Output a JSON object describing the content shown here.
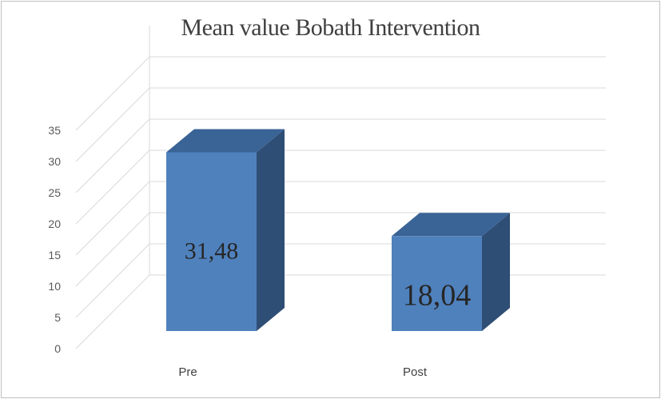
{
  "chart_data": {
    "type": "bar",
    "title": "Mean value Bobath Intervention",
    "categories": [
      "Pre",
      "Post"
    ],
    "values": [
      31.48,
      18.04
    ],
    "data_labels": [
      "31,48",
      "18,04"
    ],
    "yticks": [
      "0",
      "5",
      "10",
      "15",
      "20",
      "25",
      "30",
      "35"
    ],
    "ylim": [
      0,
      35
    ],
    "grid": true,
    "style": "3d-column",
    "colors": {
      "front": "#4f81bd",
      "top": "#3a6396",
      "side": "#2f4e75",
      "grid": "#d9d9d9"
    }
  }
}
